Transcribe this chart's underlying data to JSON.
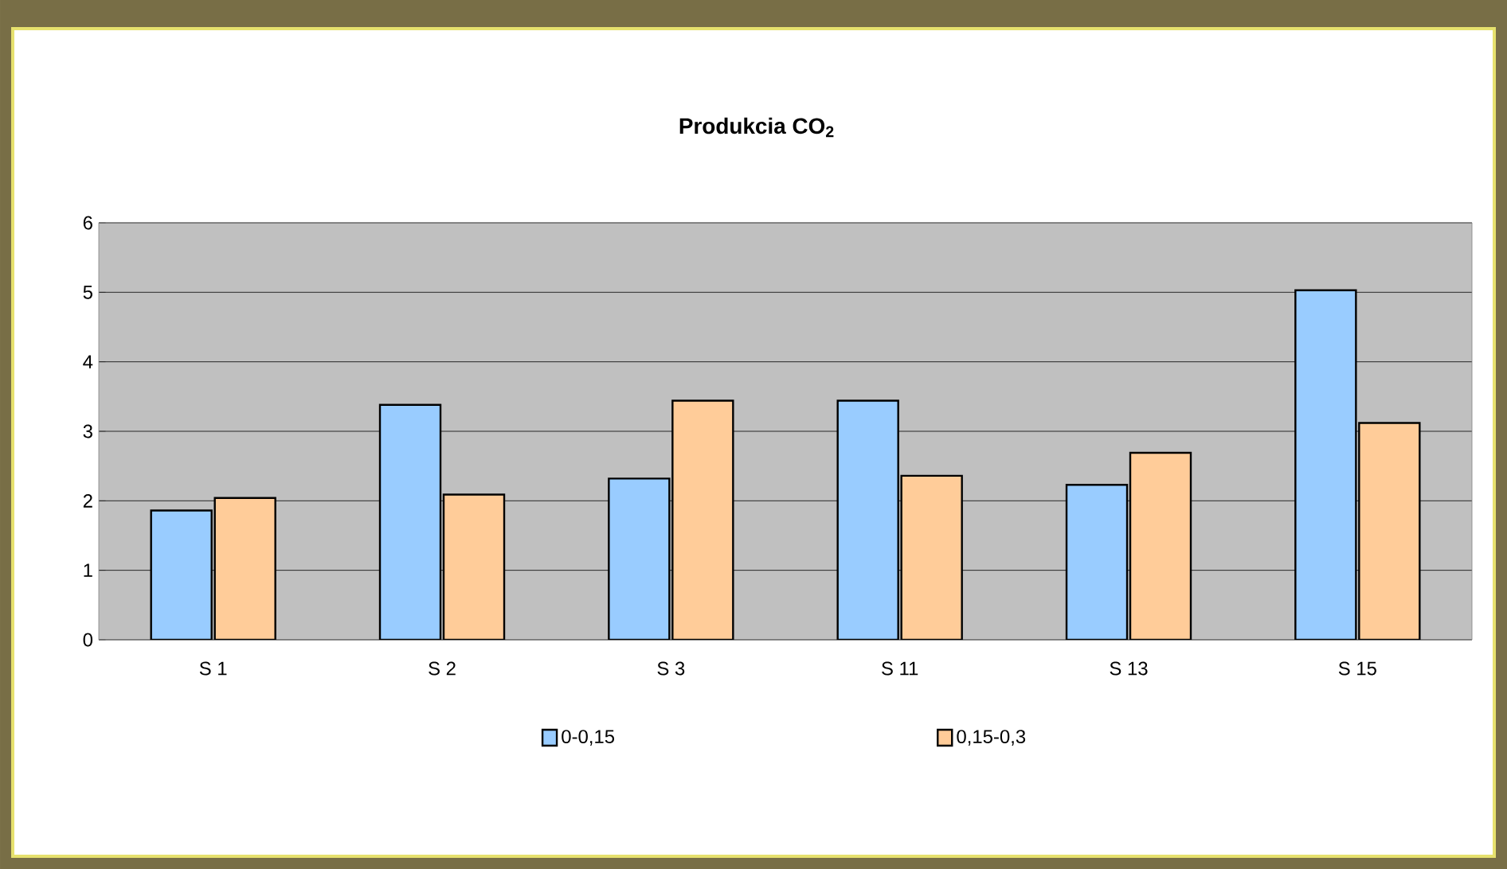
{
  "chart_data": {
    "type": "bar",
    "title": "Produkcia CO$_{2}$",
    "categories": [
      "S 1",
      "S 2",
      "S 3",
      "S 11",
      "S 13",
      "S 15"
    ],
    "series": [
      {
        "name": "0-0,15",
        "color": "#99ccff",
        "values": [
          1.86,
          3.38,
          2.32,
          3.44,
          2.23,
          5.03
        ]
      },
      {
        "name": "0,15-0,3",
        "color": "#ffcc99",
        "values": [
          2.04,
          2.09,
          3.44,
          2.36,
          2.69,
          3.12
        ]
      }
    ],
    "ylim": [
      0,
      6
    ],
    "yticks": [
      0,
      1,
      2,
      3,
      4,
      5,
      6
    ],
    "grid": "y",
    "legend": "bottom"
  }
}
